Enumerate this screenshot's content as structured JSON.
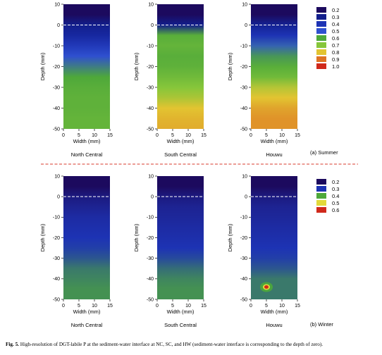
{
  "figure": {
    "caption_label": "Fig. 5.",
    "caption_text": "High-resolution of DGT-labile P at the sediment-water interface at NC, SC, and HW (sediment-water interface is corresponding to the depth of zero)."
  },
  "chart_data": [
    {
      "type": "heatmap",
      "section": "(a) Summer",
      "ylabel": "Depth (mm)",
      "xlabel": "Width (mm)",
      "xlim": [
        0,
        15
      ],
      "ylim": [
        10,
        -50
      ],
      "x_ticks": [
        "0",
        "5",
        "10",
        "15"
      ],
      "y_ticks": [
        "10",
        "0",
        "-10",
        "-20",
        "-30",
        "-40",
        "-50"
      ],
      "interface_depth": 0,
      "legend": {
        "values": [
          "0.2",
          "0.3",
          "0.4",
          "0.5",
          "0.6",
          "0.7",
          "0.8",
          "0.9",
          "1.0"
        ],
        "colors": [
          "#1c0a5e",
          "#121e8c",
          "#1d33b4",
          "#2f50cf",
          "#4ea83a",
          "#86c63a",
          "#e2c431",
          "#de7324",
          "#d0291b"
        ]
      },
      "panels": [
        {
          "site": "North Central",
          "depth": [
            10,
            5,
            0,
            -5,
            -10,
            -15,
            -20,
            -25,
            -30,
            -35,
            -40,
            -45,
            -50
          ],
          "value": [
            0.2,
            0.2,
            0.3,
            0.35,
            0.42,
            0.5,
            0.55,
            0.6,
            0.62,
            0.63,
            0.63,
            0.64,
            0.64
          ]
        },
        {
          "site": "South Central",
          "depth": [
            10,
            5,
            0,
            -5,
            -10,
            -15,
            -20,
            -25,
            -30,
            -35,
            -40,
            -45,
            -50
          ],
          "value": [
            0.2,
            0.2,
            0.3,
            0.62,
            0.64,
            0.62,
            0.63,
            0.66,
            0.7,
            0.74,
            0.8,
            0.82,
            0.83
          ]
        },
        {
          "site": "Houwu",
          "depth": [
            10,
            5,
            0,
            -5,
            -10,
            -15,
            -20,
            -25,
            -30,
            -35,
            -40,
            -45,
            -50
          ],
          "value": [
            0.2,
            0.2,
            0.32,
            0.4,
            0.52,
            0.58,
            0.62,
            0.66,
            0.75,
            0.8,
            0.84,
            0.86,
            0.86
          ]
        }
      ]
    },
    {
      "type": "heatmap",
      "section": "(b) Winter",
      "ylabel": "Depth (mm)",
      "xlabel": "Width (mm)",
      "xlim": [
        0,
        15
      ],
      "ylim": [
        10,
        -50
      ],
      "x_ticks": [
        "0",
        "5",
        "10",
        "15"
      ],
      "y_ticks": [
        "10",
        "0",
        "-10",
        "-20",
        "-30",
        "-40",
        "-50"
      ],
      "interface_depth": 0,
      "legend": {
        "values": [
          "0.2",
          "0.3",
          "0.4",
          "0.5",
          "0.6"
        ],
        "colors": [
          "#1c0a5e",
          "#1d33b4",
          "#4ea83a",
          "#e2d93a",
          "#d0291b"
        ]
      },
      "panels": [
        {
          "site": "North Central",
          "depth": [
            10,
            5,
            0,
            -5,
            -10,
            -15,
            -20,
            -25,
            -30,
            -35,
            -40,
            -45,
            -50
          ],
          "value": [
            0.2,
            0.2,
            0.24,
            0.26,
            0.28,
            0.29,
            0.3,
            0.31,
            0.33,
            0.36,
            0.37,
            0.38,
            0.38
          ]
        },
        {
          "site": "South Central",
          "depth": [
            10,
            5,
            0,
            -5,
            -10,
            -15,
            -20,
            -25,
            -30,
            -35,
            -40,
            -45,
            -50
          ],
          "value": [
            0.2,
            0.2,
            0.24,
            0.26,
            0.27,
            0.28,
            0.29,
            0.3,
            0.32,
            0.35,
            0.37,
            0.38,
            0.38
          ]
        },
        {
          "site": "Houwu",
          "depth": [
            10,
            5,
            0,
            -5,
            -10,
            -15,
            -20,
            -25,
            -30,
            -35,
            -40,
            -45,
            -50
          ],
          "value": [
            0.2,
            0.2,
            0.24,
            0.26,
            0.27,
            0.28,
            0.29,
            0.3,
            0.31,
            0.33,
            0.36,
            0.36,
            0.36
          ],
          "hotspot": {
            "x": 5,
            "depth": -44,
            "value": 0.6
          }
        }
      ]
    }
  ]
}
